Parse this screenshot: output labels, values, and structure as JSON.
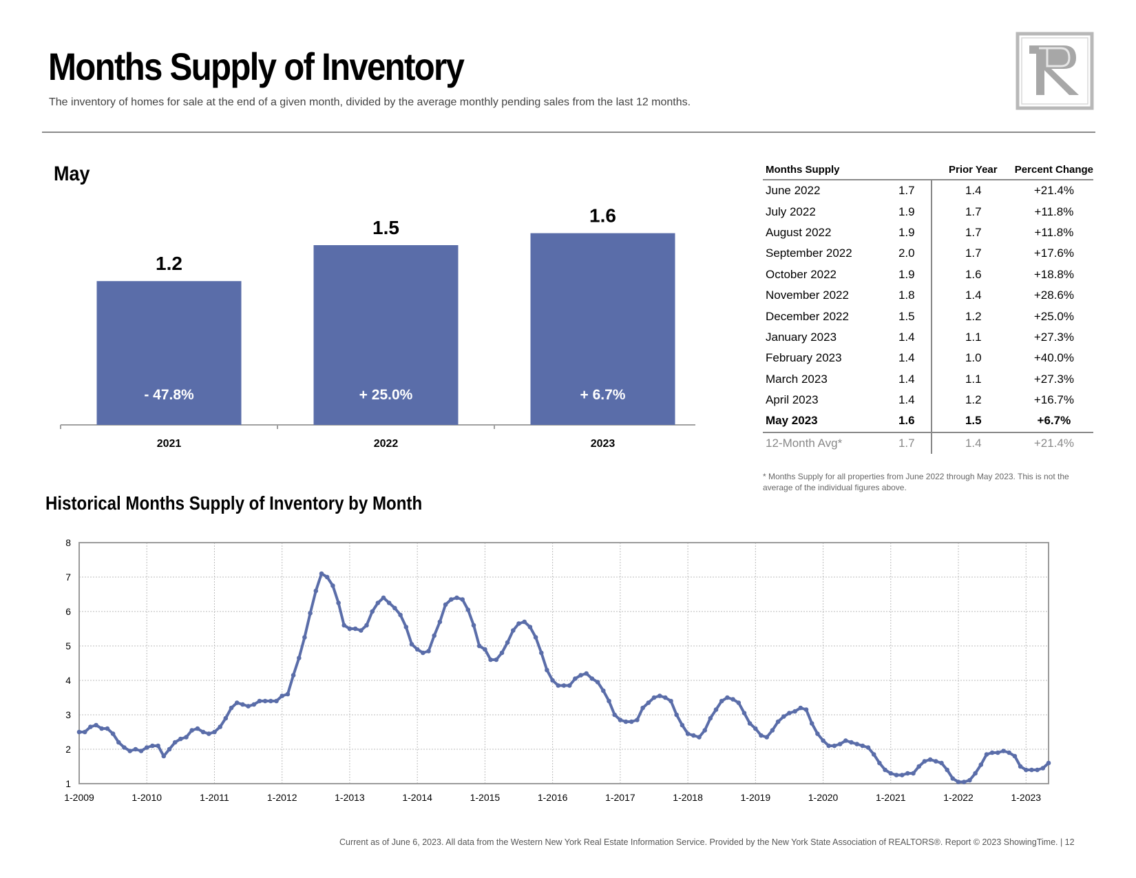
{
  "header": {
    "title": "Months Supply of Inventory",
    "subtitle": "The inventory of homes for sale at the end of a given month, divided by the average monthly pending sales from the last 12 months."
  },
  "bar_section": {
    "heading": "May"
  },
  "history_section": {
    "heading": "Historical Months Supply of Inventory by Month"
  },
  "table": {
    "headers": [
      "Months Supply",
      "",
      "Prior Year",
      "Percent Change"
    ],
    "rows": [
      {
        "label": "June 2022",
        "current": "1.7",
        "prior": "1.4",
        "change": "+21.4%"
      },
      {
        "label": "July 2022",
        "current": "1.9",
        "prior": "1.7",
        "change": "+11.8%"
      },
      {
        "label": "August 2022",
        "current": "1.9",
        "prior": "1.7",
        "change": "+11.8%"
      },
      {
        "label": "September 2022",
        "current": "2.0",
        "prior": "1.7",
        "change": "+17.6%"
      },
      {
        "label": "October 2022",
        "current": "1.9",
        "prior": "1.6",
        "change": "+18.8%"
      },
      {
        "label": "November 2022",
        "current": "1.8",
        "prior": "1.4",
        "change": "+28.6%"
      },
      {
        "label": "December 2022",
        "current": "1.5",
        "prior": "1.2",
        "change": "+25.0%"
      },
      {
        "label": "January 2023",
        "current": "1.4",
        "prior": "1.1",
        "change": "+27.3%"
      },
      {
        "label": "February 2023",
        "current": "1.4",
        "prior": "1.0",
        "change": "+40.0%"
      },
      {
        "label": "March 2023",
        "current": "1.4",
        "prior": "1.1",
        "change": "+27.3%"
      },
      {
        "label": "April 2023",
        "current": "1.4",
        "prior": "1.2",
        "change": "+16.7%"
      },
      {
        "label": "May 2023",
        "current": "1.6",
        "prior": "1.5",
        "change": "+6.7%"
      }
    ],
    "avg": {
      "label": "12-Month Avg*",
      "current": "1.7",
      "prior": "1.4",
      "change": "+21.4%"
    }
  },
  "footnote": "* Months Supply for all properties from June 2022 through May 2023. This is not the average of the individual figures above.",
  "footer": "Current as of June 6, 2023. All data from the Western New York Real Estate Information Service. Provided by the New York State Association of REALTORS®. Report © 2023 ShowingTime.  |  12",
  "colors": {
    "bar": "#5a6da9",
    "line": "#5a6da9",
    "rule": "#888888"
  },
  "logo": {
    "icon": "rr-monogram-logo"
  },
  "chart_data": [
    {
      "type": "bar",
      "title": "May",
      "categories": [
        "2021",
        "2022",
        "2023"
      ],
      "values": [
        1.2,
        1.5,
        1.6
      ],
      "value_labels": [
        "1.2",
        "1.5",
        "1.6"
      ],
      "change_labels": [
        "- 47.8%",
        "+ 25.0%",
        "+ 6.7%"
      ],
      "ylim": [
        0,
        2.0
      ]
    },
    {
      "type": "line",
      "title": "Historical Months Supply of Inventory by Month",
      "x_start": "1-2009",
      "x_end": "5-2023",
      "x_ticks": [
        "1-2009",
        "1-2010",
        "1-2011",
        "1-2012",
        "1-2013",
        "1-2014",
        "1-2015",
        "1-2016",
        "1-2017",
        "1-2018",
        "1-2019",
        "1-2020",
        "1-2021",
        "1-2022",
        "1-2023"
      ],
      "ylim": [
        1,
        8
      ],
      "y_ticks": [
        1,
        2,
        3,
        4,
        5,
        6,
        7,
        8
      ],
      "grid": true,
      "series": [
        {
          "values": [
            2.5,
            2.5,
            2.65,
            2.7,
            2.6,
            2.6,
            2.45,
            2.2,
            2.05,
            1.95,
            2.0,
            1.95,
            2.05,
            2.1,
            2.1,
            1.8,
            2.0,
            2.2,
            2.3,
            2.35,
            2.55,
            2.6,
            2.5,
            2.45,
            2.5,
            2.65,
            2.9,
            3.2,
            3.35,
            3.3,
            3.25,
            3.3,
            3.4,
            3.4,
            3.4,
            3.4,
            3.55,
            3.6,
            4.15,
            4.65,
            5.25,
            5.95,
            6.6,
            7.1,
            7.0,
            6.75,
            6.25,
            5.6,
            5.5,
            5.5,
            5.45,
            5.6,
            6.0,
            6.25,
            6.4,
            6.25,
            6.1,
            5.9,
            5.55,
            5.05,
            4.9,
            4.8,
            4.85,
            5.3,
            5.7,
            6.2,
            6.35,
            6.4,
            6.35,
            6.05,
            5.6,
            5.0,
            4.9,
            4.6,
            4.6,
            4.8,
            5.1,
            5.45,
            5.65,
            5.7,
            5.55,
            5.25,
            4.8,
            4.3,
            4.0,
            3.85,
            3.85,
            3.85,
            4.05,
            4.15,
            4.2,
            4.05,
            3.95,
            3.7,
            3.4,
            3.0,
            2.85,
            2.8,
            2.8,
            2.85,
            3.2,
            3.35,
            3.5,
            3.55,
            3.5,
            3.4,
            3.0,
            2.7,
            2.45,
            2.4,
            2.35,
            2.55,
            2.9,
            3.15,
            3.4,
            3.5,
            3.45,
            3.35,
            3.05,
            2.75,
            2.6,
            2.4,
            2.35,
            2.55,
            2.8,
            2.95,
            3.05,
            3.1,
            3.2,
            3.15,
            2.75,
            2.45,
            2.25,
            2.1,
            2.1,
            2.15,
            2.25,
            2.2,
            2.15,
            2.1,
            2.05,
            1.85,
            1.6,
            1.4,
            1.3,
            1.25,
            1.25,
            1.3,
            1.3,
            1.5,
            1.65,
            1.7,
            1.65,
            1.6,
            1.4,
            1.15,
            1.05,
            1.05,
            1.1,
            1.3,
            1.55,
            1.85,
            1.9,
            1.9,
            1.95,
            1.9,
            1.8,
            1.5,
            1.4,
            1.4,
            1.4,
            1.45,
            1.6
          ]
        }
      ]
    }
  ]
}
